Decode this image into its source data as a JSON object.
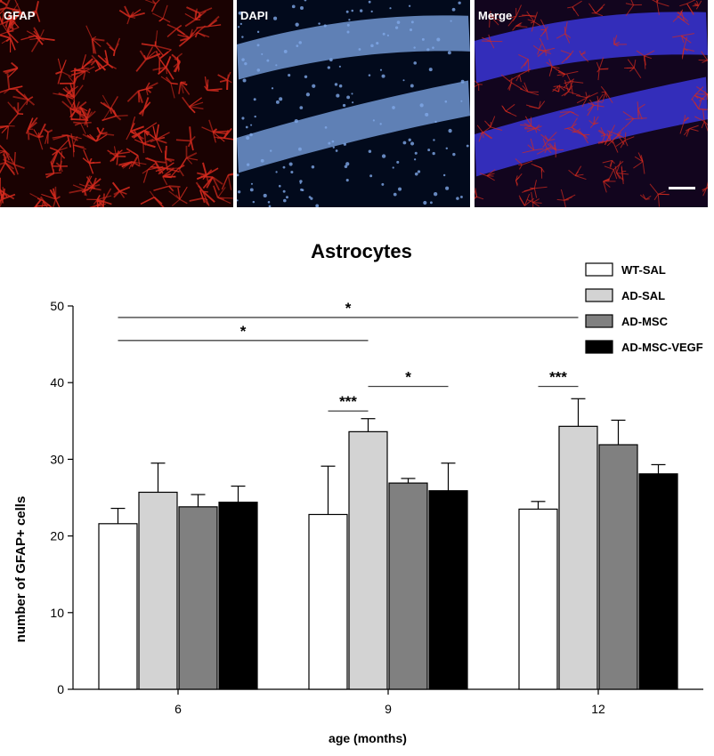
{
  "panels": [
    {
      "label": "GFAP",
      "color": "#d42a1e"
    },
    {
      "label": "DAPI",
      "color": "#7fa8e8"
    },
    {
      "label": "Merge",
      "color": "#3a35d6"
    }
  ],
  "chart_data": {
    "type": "bar",
    "title": "Astrocytes",
    "xlabel": "age (months)",
    "ylabel": "number of GFAP+ cells",
    "ylim": [
      0,
      50
    ],
    "yticks": [
      0,
      10,
      20,
      30,
      40,
      50
    ],
    "categories": [
      "6",
      "9",
      "12"
    ],
    "series": [
      {
        "name": "WT-SAL",
        "color": "#ffffff",
        "values": [
          21.6,
          22.8,
          23.5
        ],
        "errors": [
          2.0,
          6.3,
          1.0
        ]
      },
      {
        "name": "AD-SAL",
        "color": "#d3d3d3",
        "values": [
          25.7,
          33.6,
          34.3
        ],
        "errors": [
          3.8,
          1.7,
          3.6
        ]
      },
      {
        "name": "AD-MSC",
        "color": "#808080",
        "values": [
          23.8,
          26.9,
          31.9
        ],
        "errors": [
          1.6,
          0.6,
          3.2
        ]
      },
      {
        "name": "AD-MSC-VEGF",
        "color": "#000000",
        "values": [
          24.4,
          25.9,
          28.1
        ],
        "errors": [
          2.1,
          3.6,
          1.2
        ]
      }
    ],
    "legend_position": "top-right",
    "significance": [
      {
        "from": [
          "6",
          "WT-SAL"
        ],
        "to": [
          "12",
          "AD-SAL"
        ],
        "label": "*",
        "y": 48.5
      },
      {
        "from": [
          "6",
          "WT-SAL"
        ],
        "to": [
          "9",
          "AD-SAL"
        ],
        "label": "*",
        "y": 45.5
      },
      {
        "from": [
          "9",
          "AD-SAL"
        ],
        "to": [
          "9",
          "AD-MSC-VEGF"
        ],
        "label": "*",
        "y": 39.5
      },
      {
        "from": [
          "9",
          "WT-SAL"
        ],
        "to": [
          "9",
          "AD-SAL"
        ],
        "label": "***",
        "y": 36.3
      },
      {
        "from": [
          "12",
          "WT-SAL"
        ],
        "to": [
          "12",
          "AD-SAL"
        ],
        "label": "***",
        "y": 39.5
      }
    ]
  }
}
